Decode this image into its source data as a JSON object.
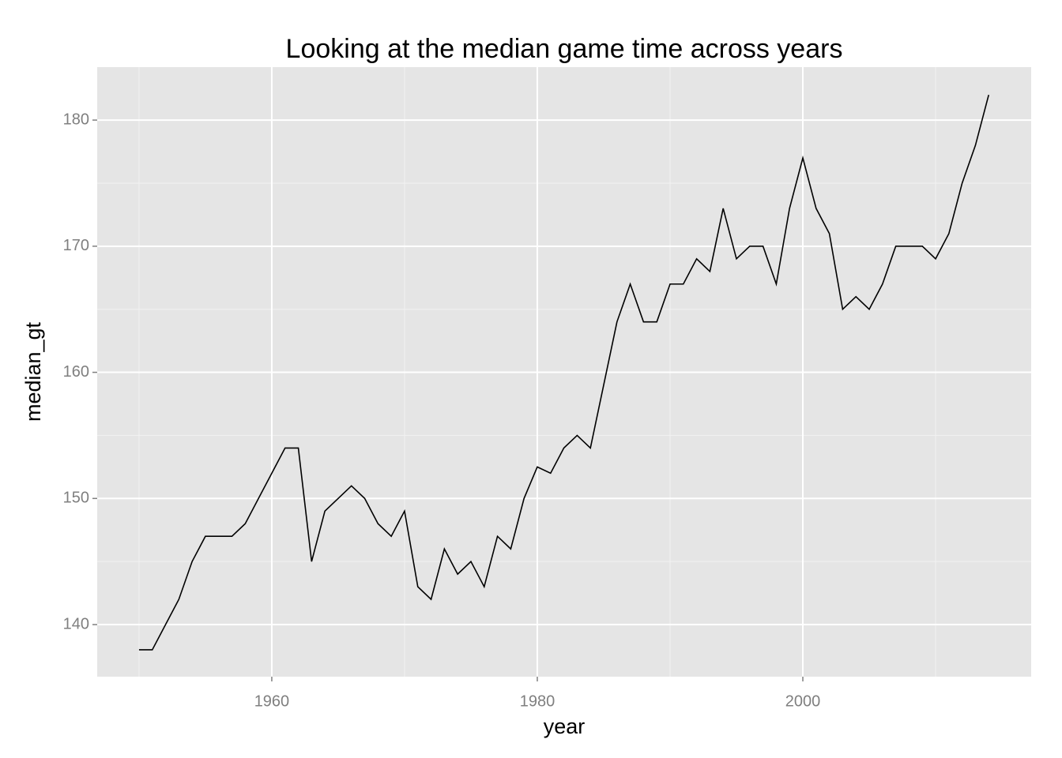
{
  "chart_data": {
    "type": "line",
    "title": "Looking at the median game time across years",
    "x_label": "year",
    "y_label": "median_gt",
    "x": [
      1950,
      1951,
      1952,
      1953,
      1954,
      1955,
      1956,
      1957,
      1958,
      1959,
      1960,
      1961,
      1962,
      1963,
      1964,
      1965,
      1966,
      1967,
      1968,
      1969,
      1970,
      1971,
      1972,
      1973,
      1974,
      1975,
      1976,
      1977,
      1978,
      1979,
      1980,
      1981,
      1982,
      1983,
      1984,
      1985,
      1986,
      1987,
      1988,
      1989,
      1990,
      1991,
      1992,
      1993,
      1994,
      1995,
      1996,
      1997,
      1998,
      1999,
      2000,
      2001,
      2002,
      2003,
      2004,
      2005,
      2006,
      2007,
      2008,
      2009,
      2010,
      2011,
      2012,
      2013,
      2014
    ],
    "series": [
      {
        "name": "median_gt",
        "color": "#000000",
        "values": [
          138,
          138,
          140,
          142,
          145,
          147,
          147,
          147,
          148,
          150,
          152,
          154,
          154,
          145,
          149,
          150,
          151,
          150,
          148,
          147,
          149,
          143,
          142,
          146,
          144,
          145,
          143,
          147,
          146,
          150,
          152.5,
          152,
          154,
          155,
          154,
          159,
          164,
          167,
          164,
          164,
          167,
          167,
          169,
          168,
          173,
          169,
          170,
          170,
          167,
          173,
          177,
          173,
          171,
          165,
          166,
          165,
          167,
          170,
          170,
          170,
          169,
          171,
          175,
          178,
          182
        ]
      }
    ],
    "xlim": [
      1946.85,
      2017.2
    ],
    "xticks": [
      1960,
      1980,
      2000
    ],
    "ylim": [
      135.87,
      184.2
    ],
    "yticks": [
      140,
      150,
      160,
      170,
      180
    ],
    "grid": true
  }
}
